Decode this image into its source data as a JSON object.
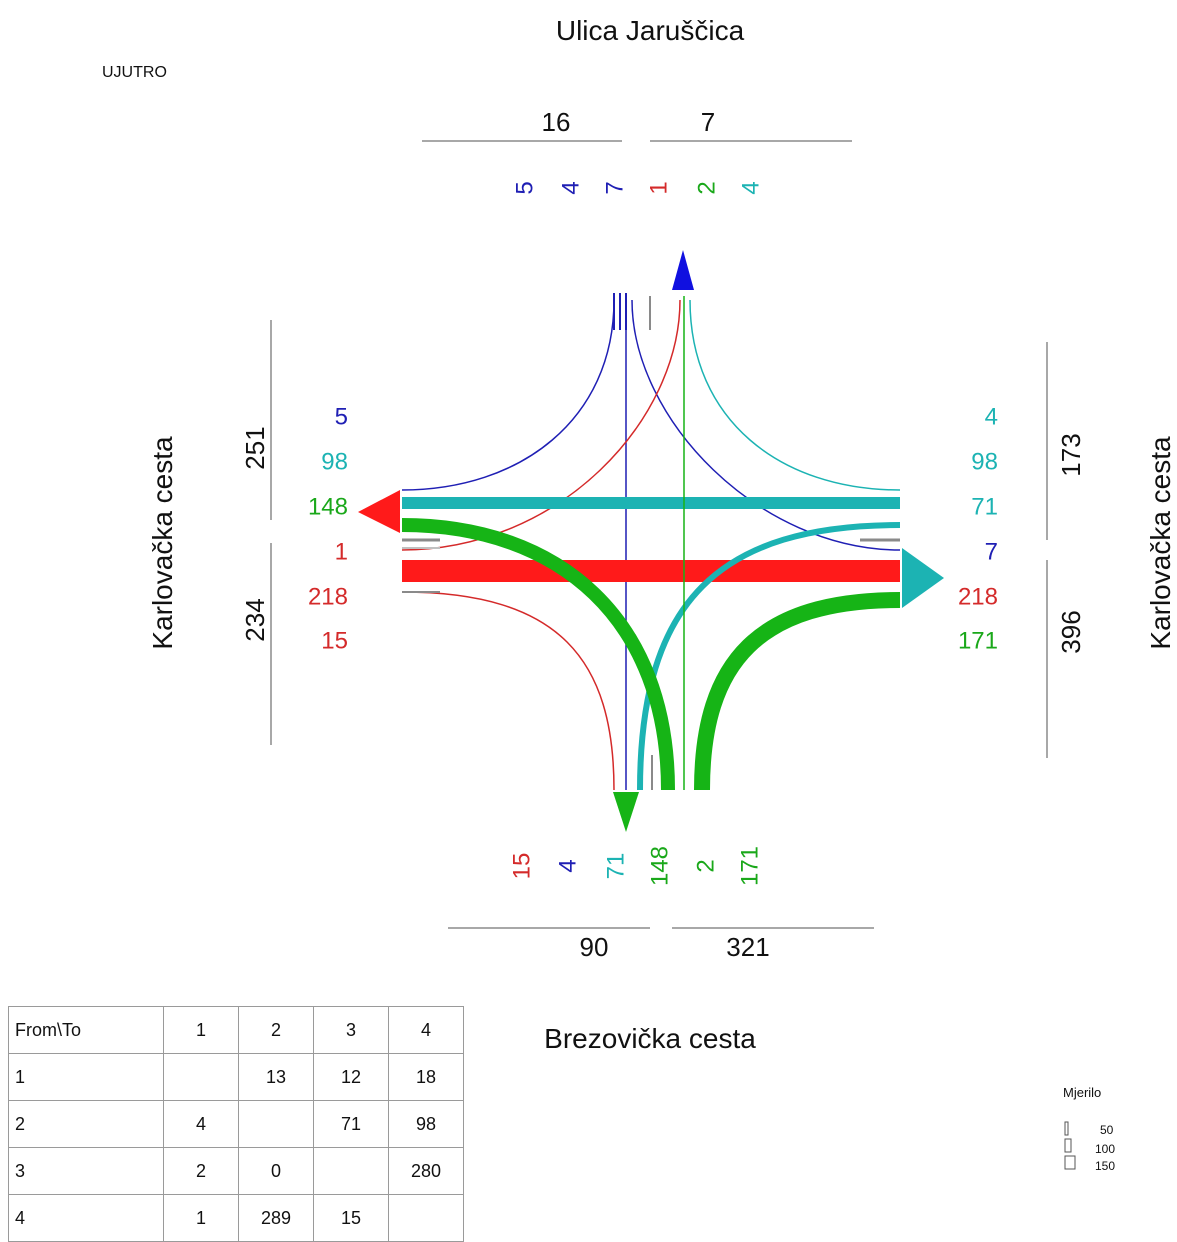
{
  "period_label": "UJUTRO",
  "streets": {
    "north": "Ulica Jaruščica",
    "south": "Brezovička cesta",
    "west": "Karlovačka cesta",
    "east": "Karlovačka cesta"
  },
  "totals": {
    "north_out": "16",
    "north_in": "7",
    "south_out": "90",
    "south_in": "321",
    "west_top": "251",
    "west_bottom": "234",
    "east_top": "173",
    "east_bottom": "396"
  },
  "north_labels": [
    {
      "text": "5",
      "color": "#1f1fb4"
    },
    {
      "text": "4",
      "color": "#1f1fb4"
    },
    {
      "text": "7",
      "color": "#1f1fb4"
    },
    {
      "text": "1",
      "color": "#d42a2a"
    },
    {
      "text": "2",
      "color": "#1aa81a"
    },
    {
      "text": "4",
      "color": "#1cb3b3"
    }
  ],
  "south_labels": [
    {
      "text": "15",
      "color": "#d42a2a"
    },
    {
      "text": "4",
      "color": "#1f1fb4"
    },
    {
      "text": "71",
      "color": "#1cb3b3"
    },
    {
      "text": "148",
      "color": "#1aa81a"
    },
    {
      "text": "2",
      "color": "#1aa81a"
    },
    {
      "text": "171",
      "color": "#1aa81a"
    }
  ],
  "west_labels": [
    {
      "text": "5",
      "color": "#1f1fb4"
    },
    {
      "text": "98",
      "color": "#1cb3b3"
    },
    {
      "text": "148",
      "color": "#1aa81a"
    },
    {
      "text": "1",
      "color": "#d42a2a"
    },
    {
      "text": "218",
      "color": "#d42a2a"
    },
    {
      "text": "15",
      "color": "#d42a2a"
    }
  ],
  "east_labels": [
    {
      "text": "4",
      "color": "#1cb3b3"
    },
    {
      "text": "98",
      "color": "#1cb3b3"
    },
    {
      "text": "71",
      "color": "#1cb3b3"
    },
    {
      "text": "7",
      "color": "#1f1fb4"
    },
    {
      "text": "218",
      "color": "#d42a2a"
    },
    {
      "text": "171",
      "color": "#1aa81a"
    }
  ],
  "colors": {
    "from_1": "#d42a2a",
    "from_2": "#1cb3b3",
    "from_3": "#1aa81a",
    "from_4": "#1f1fb4"
  },
  "od_table": {
    "header": [
      "From\\To",
      "1",
      "2",
      "3",
      "4"
    ],
    "rows": [
      [
        "1",
        "",
        "13",
        "12",
        "18"
      ],
      [
        "2",
        "4",
        "",
        "71",
        "98"
      ],
      [
        "3",
        "2",
        "0",
        "",
        "280"
      ],
      [
        "4",
        "1",
        "289",
        "15",
        ""
      ]
    ]
  },
  "scale": {
    "title": "Mjerilo",
    "values": [
      "50",
      "100",
      "150"
    ]
  }
}
